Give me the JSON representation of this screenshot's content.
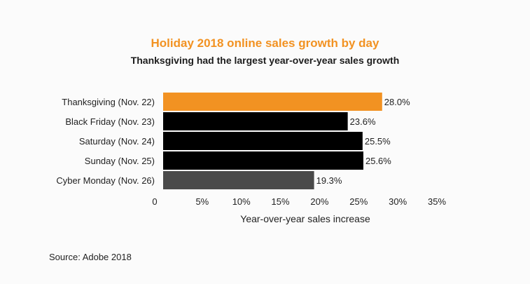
{
  "chart_data": {
    "type": "bar",
    "orientation": "horizontal",
    "title": "Holiday 2018 online sales growth by day",
    "subtitle": "Thanksgiving had the largest year-over-year sales growth",
    "categories": [
      "Thanksgiving (Nov. 22)",
      "Black Friday (Nov. 23)",
      "Saturday (Nov. 24)",
      "Sunday (Nov. 25)",
      "Cyber Monday (Nov. 26)"
    ],
    "values": [
      28.0,
      23.6,
      25.5,
      25.6,
      19.3
    ],
    "value_labels": [
      "28.0%",
      "23.6%",
      "25.5%",
      "25.6%",
      "19.3%"
    ],
    "bar_colors": [
      "#f29222",
      "#000000",
      "#000000",
      "#000000",
      "#4a4a4a"
    ],
    "xlabel": "Year-over-year sales increase",
    "ylabel": "",
    "xlim": [
      0,
      35
    ],
    "x_ticks": [
      0,
      5,
      10,
      15,
      20,
      25,
      30,
      35
    ],
    "x_tick_labels": [
      "0",
      "5%",
      "10%",
      "15%",
      "20%",
      "25%",
      "30%",
      "35%"
    ],
    "grid": false,
    "legend": "none"
  },
  "colors": {
    "title": "#f29222",
    "highlight": "#f29222",
    "bar": "#000000",
    "bar_last": "#4a4a4a",
    "background": "#fbfbfb"
  },
  "source": "Source: Adobe 2018"
}
